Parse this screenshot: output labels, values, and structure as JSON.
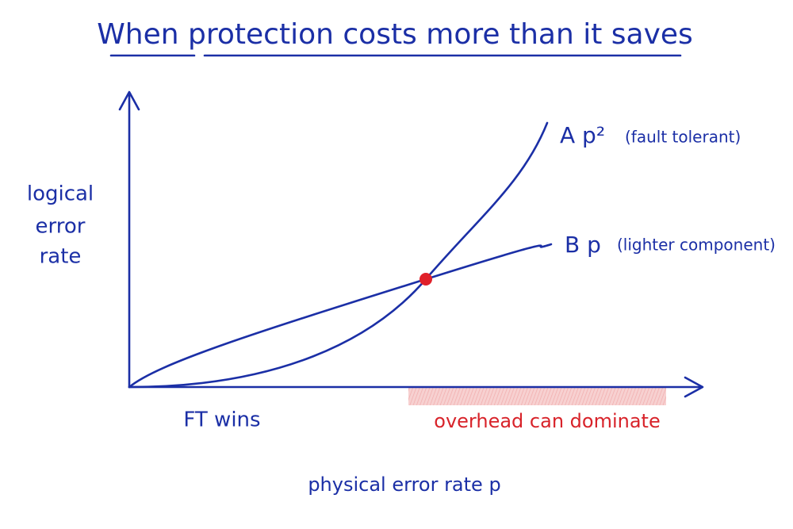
{
  "title": "When protection costs more than it saves",
  "y_axis_label": [
    "logical",
    "error",
    "rate"
  ],
  "x_axis_label": "physical error rate  p",
  "curves": [
    {
      "label": "A p²",
      "note": "(fault tolerant)"
    },
    {
      "label": "B p",
      "note": "(lighter component)"
    }
  ],
  "regions": {
    "left": "FT wins",
    "right": "overhead can dominate"
  }
}
